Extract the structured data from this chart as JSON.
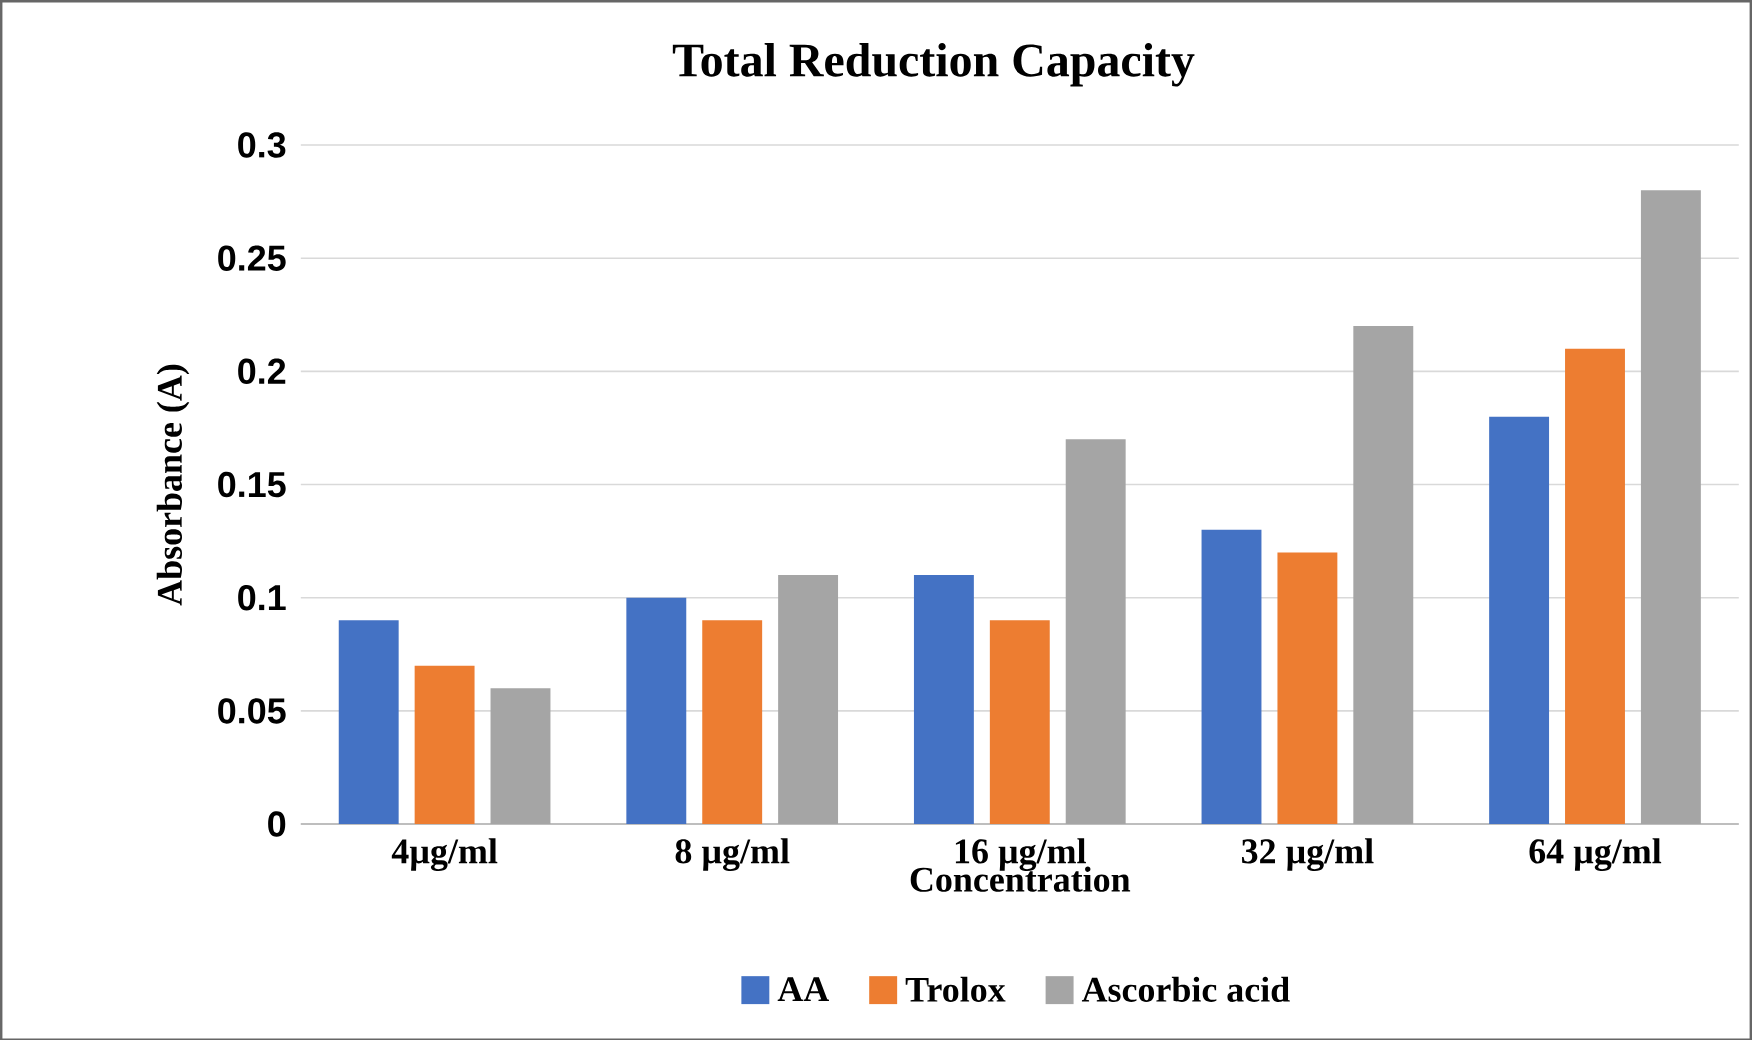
{
  "chart_data": {
    "type": "bar",
    "title": "Total Reduction Capacity",
    "xlabel": "Concentration",
    "ylabel": "Absorbance (A)",
    "categories": [
      "4µg/ml",
      "8 µg/ml",
      "16 µg/ml",
      "32 µg/ml",
      "64 µg/ml"
    ],
    "series": [
      {
        "name": "AA",
        "color": "#4472c4",
        "values": [
          0.09,
          0.1,
          0.11,
          0.13,
          0.18
        ]
      },
      {
        "name": "Trolox",
        "color": "#ed7d31",
        "values": [
          0.07,
          0.09,
          0.09,
          0.12,
          0.21
        ]
      },
      {
        "name": "Ascorbic acid",
        "color": "#a5a5a5",
        "values": [
          0.06,
          0.11,
          0.17,
          0.22,
          0.28
        ]
      }
    ],
    "ylim": [
      0,
      0.3
    ],
    "yticks": [
      0,
      0.05,
      0.1,
      0.15,
      0.2,
      0.25,
      0.3
    ],
    "grid": "y",
    "legend": "bottom"
  }
}
